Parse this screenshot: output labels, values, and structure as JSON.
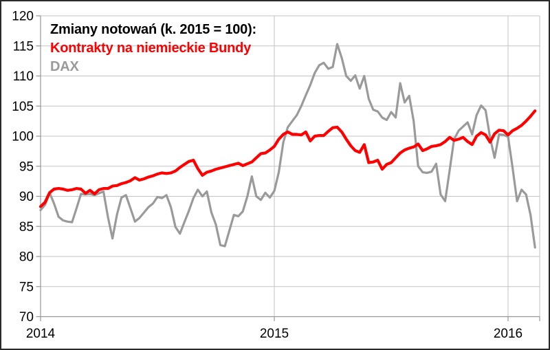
{
  "legend": {
    "title": "Zmiany notowań (k. 2015 = 100):",
    "series1_label": "Kontrakty na niemieckie Bundy",
    "series2_label": "DAX"
  },
  "colors": {
    "bundy_line": "#ff0000",
    "dax_line": "#9a9a9a",
    "gridline": "#c3c3c3",
    "axis": "#969696",
    "label_text": "#000000",
    "frame_border": "#2b2b2b"
  },
  "chart_data": {
    "type": "line",
    "title": "Zmiany notowań (k. 2015 = 100):",
    "subtitle": "",
    "xlabel": "",
    "ylabel": "",
    "x_unit": "weekly observations, Jan 2014 - Feb 2016, index end-2015 = 100",
    "x_tick_labels": [
      "2014",
      "2015",
      "2016"
    ],
    "x_tick_positions": [
      0,
      52,
      104
    ],
    "x_count": 111,
    "ylim": [
      70,
      120
    ],
    "y_ticks": [
      70,
      75,
      80,
      85,
      90,
      95,
      100,
      105,
      110,
      115,
      120
    ],
    "grid": true,
    "legend_position": "top-left",
    "series": [
      {
        "name": "DAX",
        "color": "#9a9a9a",
        "width": 3.2,
        "values": [
          87.7,
          88.6,
          90.6,
          88.8,
          86.6,
          86.0,
          85.8,
          85.7,
          88.0,
          90.4,
          90.3,
          90.4,
          90.2,
          90.5,
          90.8,
          86.5,
          83.0,
          87.0,
          89.8,
          90.2,
          88.0,
          85.8,
          86.4,
          87.3,
          88.2,
          88.8,
          89.9,
          89.7,
          90.2,
          88.2,
          84.9,
          83.8,
          85.7,
          87.6,
          89.7,
          91.1,
          90.0,
          90.8,
          87.3,
          85.3,
          81.9,
          81.7,
          84.3,
          86.9,
          86.7,
          87.5,
          90.0,
          93.3,
          90.0,
          89.4,
          90.6,
          89.8,
          90.9,
          94.0,
          99.0,
          101.5,
          102.5,
          103.5,
          105.0,
          106.8,
          108.5,
          110.5,
          111.8,
          112.2,
          111.2,
          111.5,
          115.3,
          113.0,
          110.0,
          109.2,
          110.1,
          107.9,
          110.0,
          106.2,
          104.4,
          104.1,
          103.1,
          102.7,
          104.0,
          103.1,
          108.8,
          105.6,
          106.7,
          102.5,
          95.0,
          94.0,
          93.9,
          94.1,
          95.4,
          90.3,
          89.2,
          94.3,
          99.5,
          100.9,
          101.6,
          102.3,
          100.3,
          103.5,
          105.1,
          104.3,
          99.8,
          96.4,
          100.3,
          100.2,
          99.9,
          94.8,
          89.2,
          91.1,
          90.3,
          86.9,
          81.5
        ]
      },
      {
        "name": "Kontrakty na niemieckie Bundy",
        "color": "#ff0000",
        "width": 4.2,
        "values": [
          88.3,
          89.0,
          90.6,
          91.2,
          91.3,
          91.2,
          91.0,
          91.1,
          91.3,
          91.2,
          90.5,
          91.0,
          90.4,
          91.1,
          91.3,
          91.3,
          91.7,
          91.8,
          92.1,
          92.3,
          92.6,
          93.1,
          92.7,
          92.9,
          93.2,
          93.4,
          93.7,
          93.9,
          93.8,
          93.9,
          94.2,
          94.8,
          95.3,
          95.8,
          96.0,
          94.6,
          93.5,
          94.0,
          94.2,
          94.5,
          94.7,
          94.9,
          95.1,
          95.3,
          95.5,
          95.1,
          95.4,
          95.7,
          96.4,
          97.1,
          97.2,
          97.7,
          98.3,
          99.5,
          100.3,
          100.7,
          100.3,
          100.3,
          100.2,
          100.7,
          99.2,
          100.0,
          100.1,
          100.1,
          100.8,
          101.4,
          101.5,
          100.7,
          99.5,
          98.4,
          97.6,
          97.3,
          98.6,
          95.6,
          95.7,
          96.0,
          94.5,
          95.3,
          95.6,
          96.4,
          97.2,
          97.7,
          98.0,
          98.2,
          98.7,
          97.6,
          97.9,
          98.3,
          98.4,
          98.6,
          99.1,
          99.8,
          99.3,
          99.5,
          99.8,
          99.1,
          98.6,
          100.0,
          100.6,
          100.2,
          99.0,
          100.4,
          101.0,
          100.9,
          100.2,
          100.9,
          101.3,
          101.8,
          102.5,
          103.3,
          104.2
        ]
      }
    ]
  }
}
